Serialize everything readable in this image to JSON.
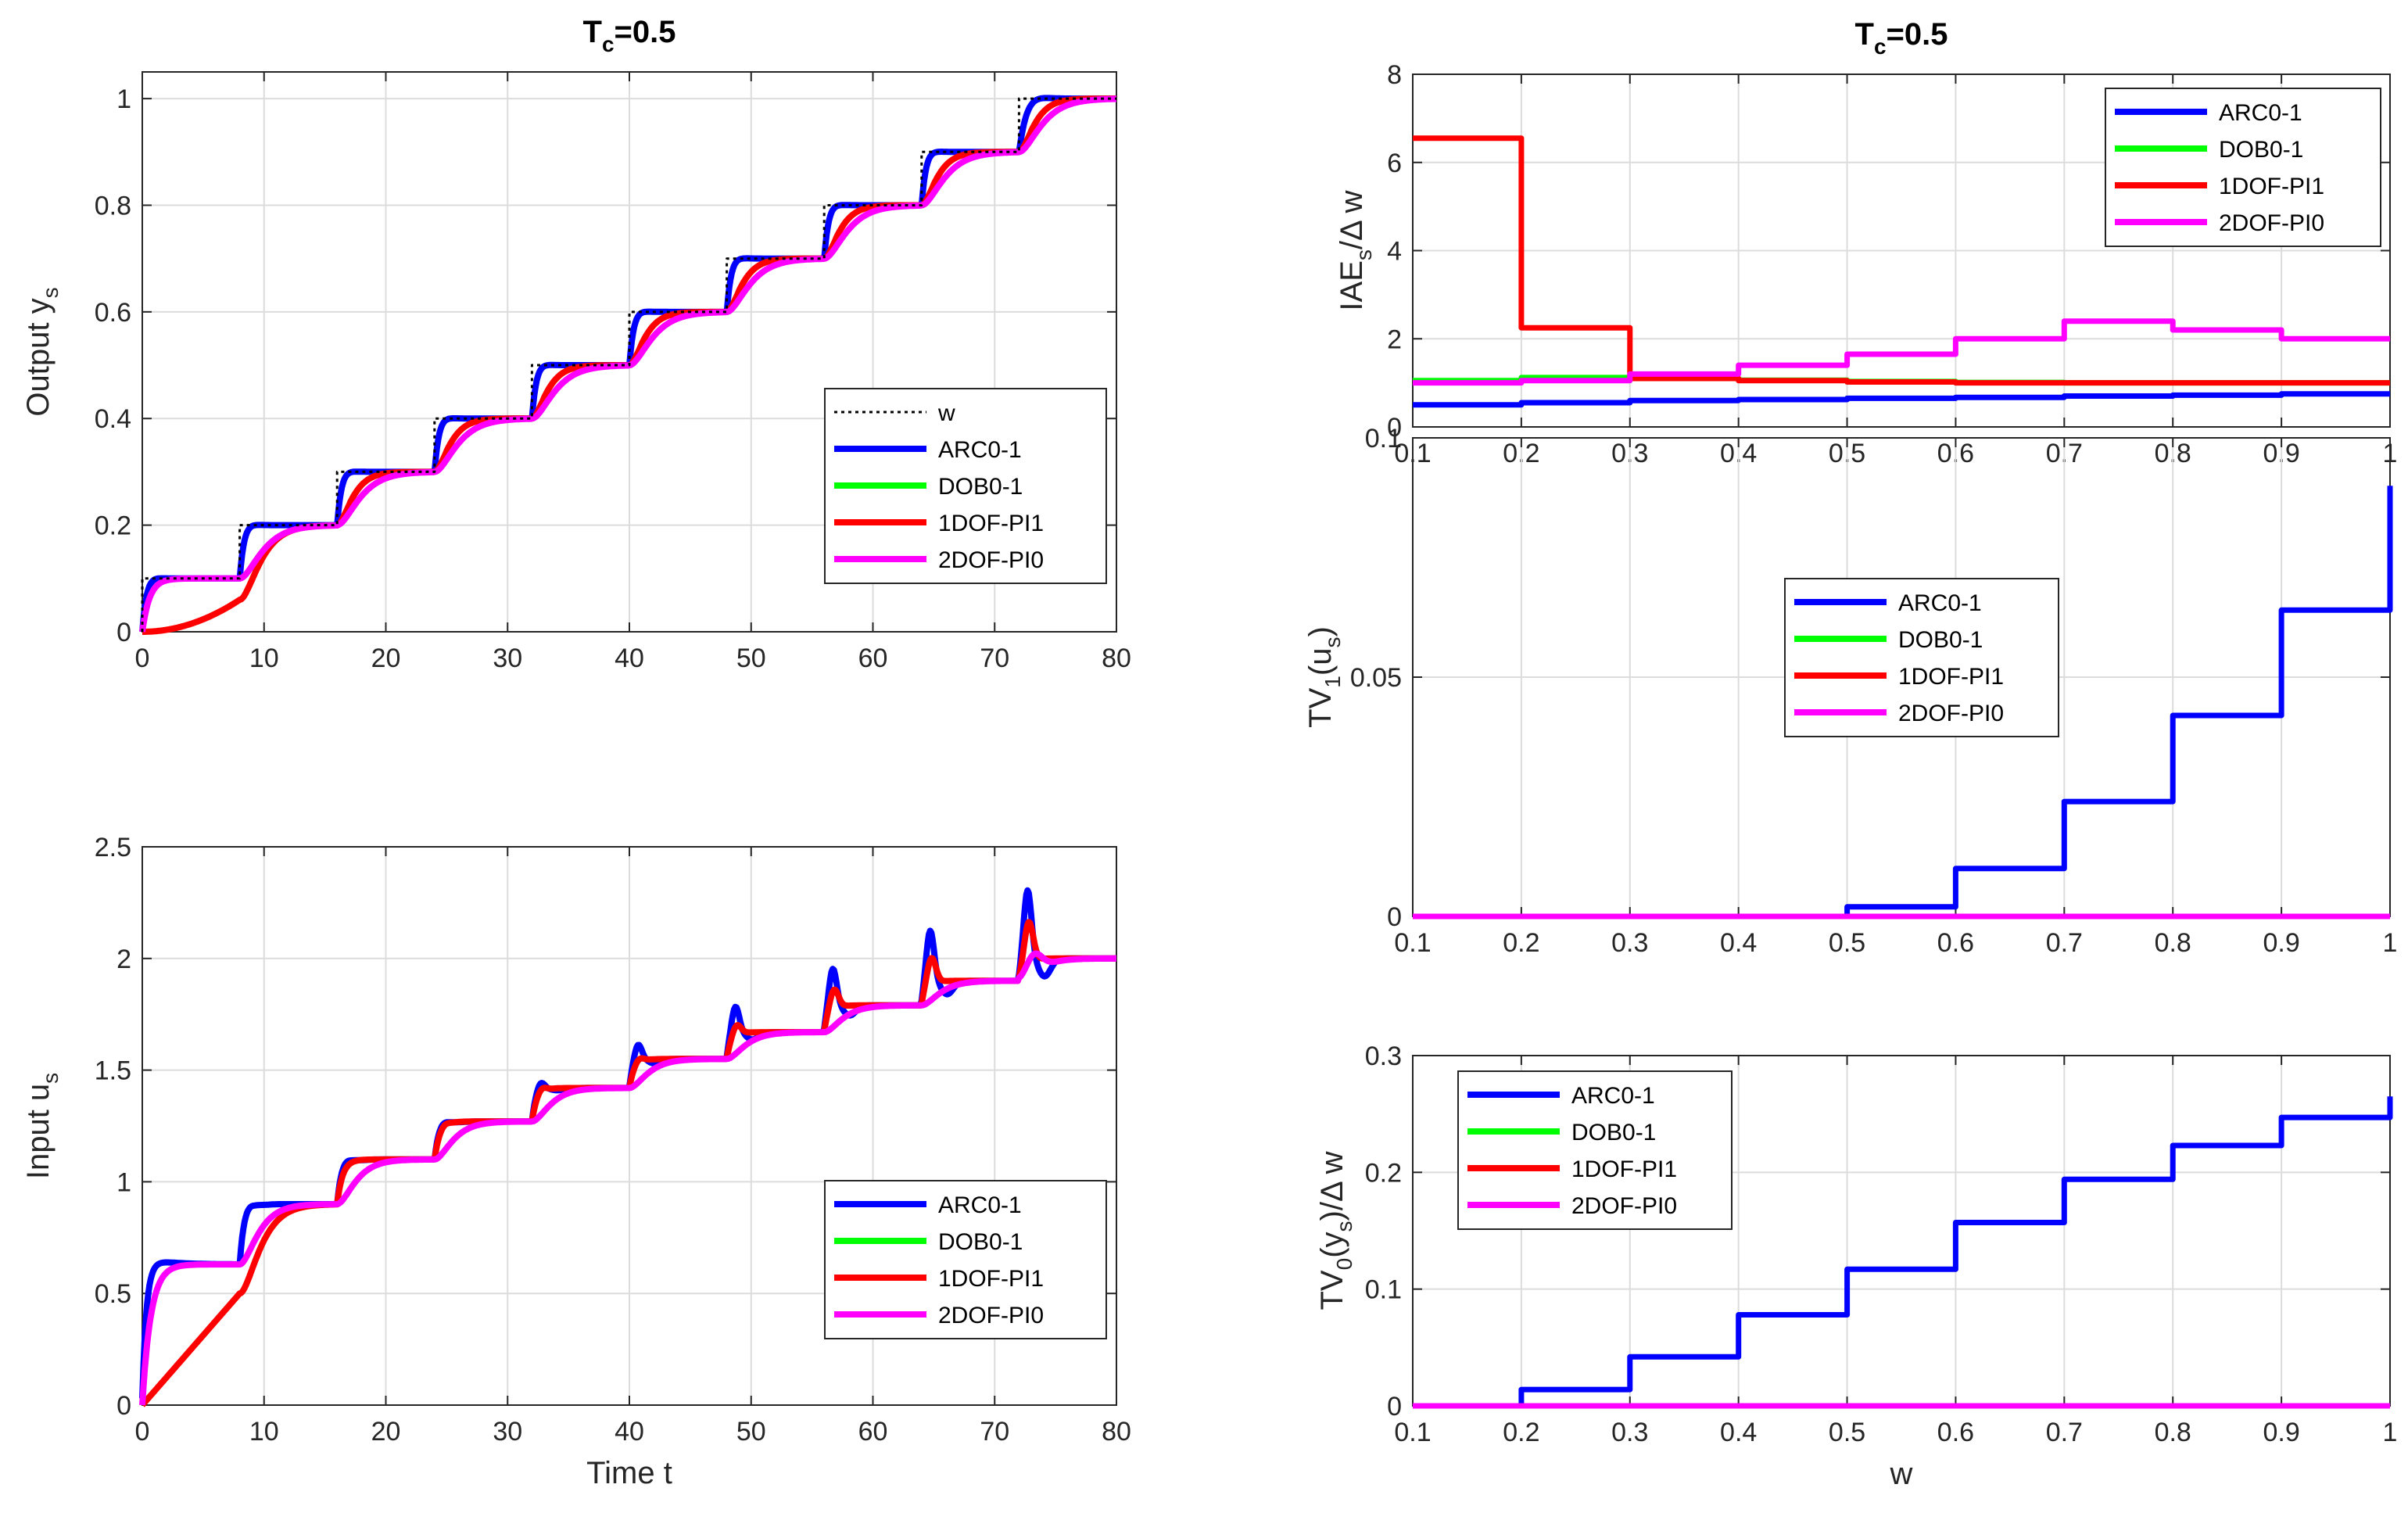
{
  "colors": {
    "w": "#000000",
    "ARC0-1": "#0000ff",
    "DOB0-1": "#00ff00",
    "1DOF-PI1": "#ff0000",
    "2DOF-PI0": "#ff00ff",
    "grid": "#dcdcdc",
    "axes": "#262626"
  },
  "chart_data": [
    {
      "id": "output",
      "type": "line",
      "title_main": "T",
      "title_sub": "c",
      "title_tail": "=0.5",
      "ylabel_main": "Output y",
      "ylabel_sub": "s",
      "xlabel": "",
      "xlim": [
        0,
        80
      ],
      "ylim": [
        0,
        1.05
      ],
      "xticks": [
        "0",
        "10",
        "20",
        "30",
        "40",
        "50",
        "60",
        "70",
        "80"
      ],
      "yticks": [
        "0",
        "0.2",
        "0.4",
        "0.6",
        "0.8",
        "1"
      ],
      "grid": true,
      "legend": [
        "w",
        "ARC0-1",
        "DOB0-1",
        "1DOF-PI1",
        "2DOF-PI0"
      ],
      "legend_placement": "center-right",
      "step_period": 8,
      "step_size": 0.1,
      "n_steps": 10
    },
    {
      "id": "input",
      "type": "line",
      "title_main": "",
      "title_sub": "",
      "title_tail": "",
      "ylabel_main": "Input u",
      "ylabel_sub": "s",
      "xlabel": "Time t",
      "xlim": [
        0,
        80
      ],
      "ylim": [
        0,
        2.5
      ],
      "xticks": [
        "0",
        "10",
        "20",
        "30",
        "40",
        "50",
        "60",
        "70",
        "80"
      ],
      "yticks": [
        "0",
        "0.5",
        "1",
        "1.5",
        "2",
        "2.5"
      ],
      "grid": true,
      "legend": [
        "ARC0-1",
        "DOB0-1",
        "1DOF-PI1",
        "2DOF-PI0"
      ],
      "legend_placement": "bottom-right",
      "levels": [
        0.63,
        0.9,
        1.1,
        1.27,
        1.42,
        1.55,
        1.67,
        1.79,
        1.9,
        2.0
      ],
      "peaks_ARC": [
        0.66,
        0.91,
        1.11,
        1.28,
        1.46,
        1.63,
        1.8,
        1.97,
        2.14,
        2.32
      ],
      "peaks_PI1": [
        0.5,
        0.9,
        1.1,
        1.28,
        1.44,
        1.57,
        1.72,
        1.88,
        2.02,
        2.18
      ]
    },
    {
      "id": "iae",
      "type": "line",
      "title_main": "T",
      "title_sub": "c",
      "title_tail": "=0.5",
      "ylabel_main": "IAE",
      "ylabel_sub": "s",
      "ylabel_tail": "/Δ w",
      "xlabel": "",
      "xlim": [
        0.1,
        1
      ],
      "ylim": [
        0,
        8
      ],
      "xticks": [
        "0.1",
        "0.2",
        "0.3",
        "0.4",
        "0.5",
        "0.6",
        "0.7",
        "0.8",
        "0.9",
        "1"
      ],
      "yticks": [
        "0",
        "2",
        "4",
        "6",
        "8"
      ],
      "grid": true,
      "legend": [
        "ARC0-1",
        "DOB0-1",
        "1DOF-PI1",
        "2DOF-PI0"
      ],
      "legend_placement": "top-right",
      "edges": [
        0.1,
        0.2,
        0.3,
        0.4,
        0.5,
        0.6,
        0.7,
        0.8,
        0.9,
        1.0
      ],
      "series": [
        {
          "name": "ARC0-1",
          "values": [
            0.5,
            0.55,
            0.6,
            0.62,
            0.65,
            0.67,
            0.7,
            0.72,
            0.75
          ]
        },
        {
          "name": "DOB0-1",
          "values": [
            1.05,
            1.12,
            1.1,
            1.06,
            1.03,
            1.01,
            1.0,
            1.0,
            1.0
          ]
        },
        {
          "name": "1DOF-PI1",
          "values": [
            6.55,
            2.25,
            1.1,
            1.05,
            1.02,
            1.0,
            1.0,
            1.0,
            1.0
          ]
        },
        {
          "name": "2DOF-PI0",
          "values": [
            1.0,
            1.05,
            1.2,
            1.4,
            1.65,
            2.0,
            2.4,
            2.2,
            2.0
          ]
        }
      ]
    },
    {
      "id": "tv1",
      "type": "line",
      "title_main": "",
      "title_sub": "",
      "title_tail": "",
      "ylabel_main": "TV",
      "ylabel_sub": "1",
      "ylabel_tail": "(u",
      "ylabel_sub2": "s",
      "ylabel_tail2": ")",
      "xlabel": "",
      "xlim": [
        0.1,
        1
      ],
      "ylim": [
        0,
        0.1
      ],
      "xticks": [
        "0.1",
        "0.2",
        "0.3",
        "0.4",
        "0.5",
        "0.6",
        "0.7",
        "0.8",
        "0.9",
        "1"
      ],
      "yticks": [
        "0",
        "0.05",
        "0.1"
      ],
      "grid": true,
      "legend": [
        "ARC0-1",
        "DOB0-1",
        "1DOF-PI1",
        "2DOF-PI0"
      ],
      "legend_placement": "top-center",
      "edges": [
        0.1,
        0.2,
        0.3,
        0.4,
        0.5,
        0.6,
        0.7,
        0.8,
        0.9,
        1.0
      ],
      "end_value_ARC": 0.09,
      "series": [
        {
          "name": "ARC0-1",
          "values": [
            0,
            0,
            0,
            0,
            0.002,
            0.01,
            0.024,
            0.042,
            0.064
          ]
        },
        {
          "name": "DOB0-1",
          "values": [
            0,
            0,
            0,
            0,
            0,
            0,
            0,
            0,
            0
          ]
        },
        {
          "name": "1DOF-PI1",
          "values": [
            0,
            0,
            0,
            0,
            0,
            0,
            0,
            0,
            0
          ]
        },
        {
          "name": "2DOF-PI0",
          "values": [
            0,
            0,
            0,
            0,
            0,
            0,
            0,
            0,
            0
          ]
        }
      ]
    },
    {
      "id": "tv0",
      "type": "line",
      "title_main": "",
      "title_sub": "",
      "title_tail": "",
      "ylabel_main": "TV",
      "ylabel_sub": "0",
      "ylabel_tail": "(y",
      "ylabel_sub2": "s",
      "ylabel_tail2": ")/Δ w",
      "xlabel": "w",
      "xlim": [
        0.1,
        1
      ],
      "ylim": [
        0,
        0.3
      ],
      "xticks": [
        "0.1",
        "0.2",
        "0.3",
        "0.4",
        "0.5",
        "0.6",
        "0.7",
        "0.8",
        "0.9",
        "1"
      ],
      "yticks": [
        "0",
        "0.1",
        "0.2",
        "0.3"
      ],
      "grid": true,
      "legend": [
        "ARC0-1",
        "DOB0-1",
        "1DOF-PI1",
        "2DOF-PI0"
      ],
      "legend_placement": "top-left",
      "edges": [
        0.1,
        0.2,
        0.3,
        0.4,
        0.5,
        0.6,
        0.7,
        0.8,
        0.9,
        1.0
      ],
      "end_value_ARC": 0.265,
      "series": [
        {
          "name": "ARC0-1",
          "values": [
            0,
            0.014,
            0.042,
            0.078,
            0.117,
            0.157,
            0.194,
            0.223,
            0.247
          ]
        },
        {
          "name": "DOB0-1",
          "values": [
            0,
            0,
            0.001,
            0.001,
            0.001,
            0.001,
            0.001,
            0.001,
            0.001
          ]
        },
        {
          "name": "1DOF-PI1",
          "values": [
            0,
            0,
            0,
            0,
            0,
            0,
            0,
            0,
            0
          ]
        },
        {
          "name": "2DOF-PI0",
          "values": [
            0,
            0,
            0,
            0,
            0,
            0,
            0,
            0,
            0
          ]
        }
      ]
    }
  ]
}
